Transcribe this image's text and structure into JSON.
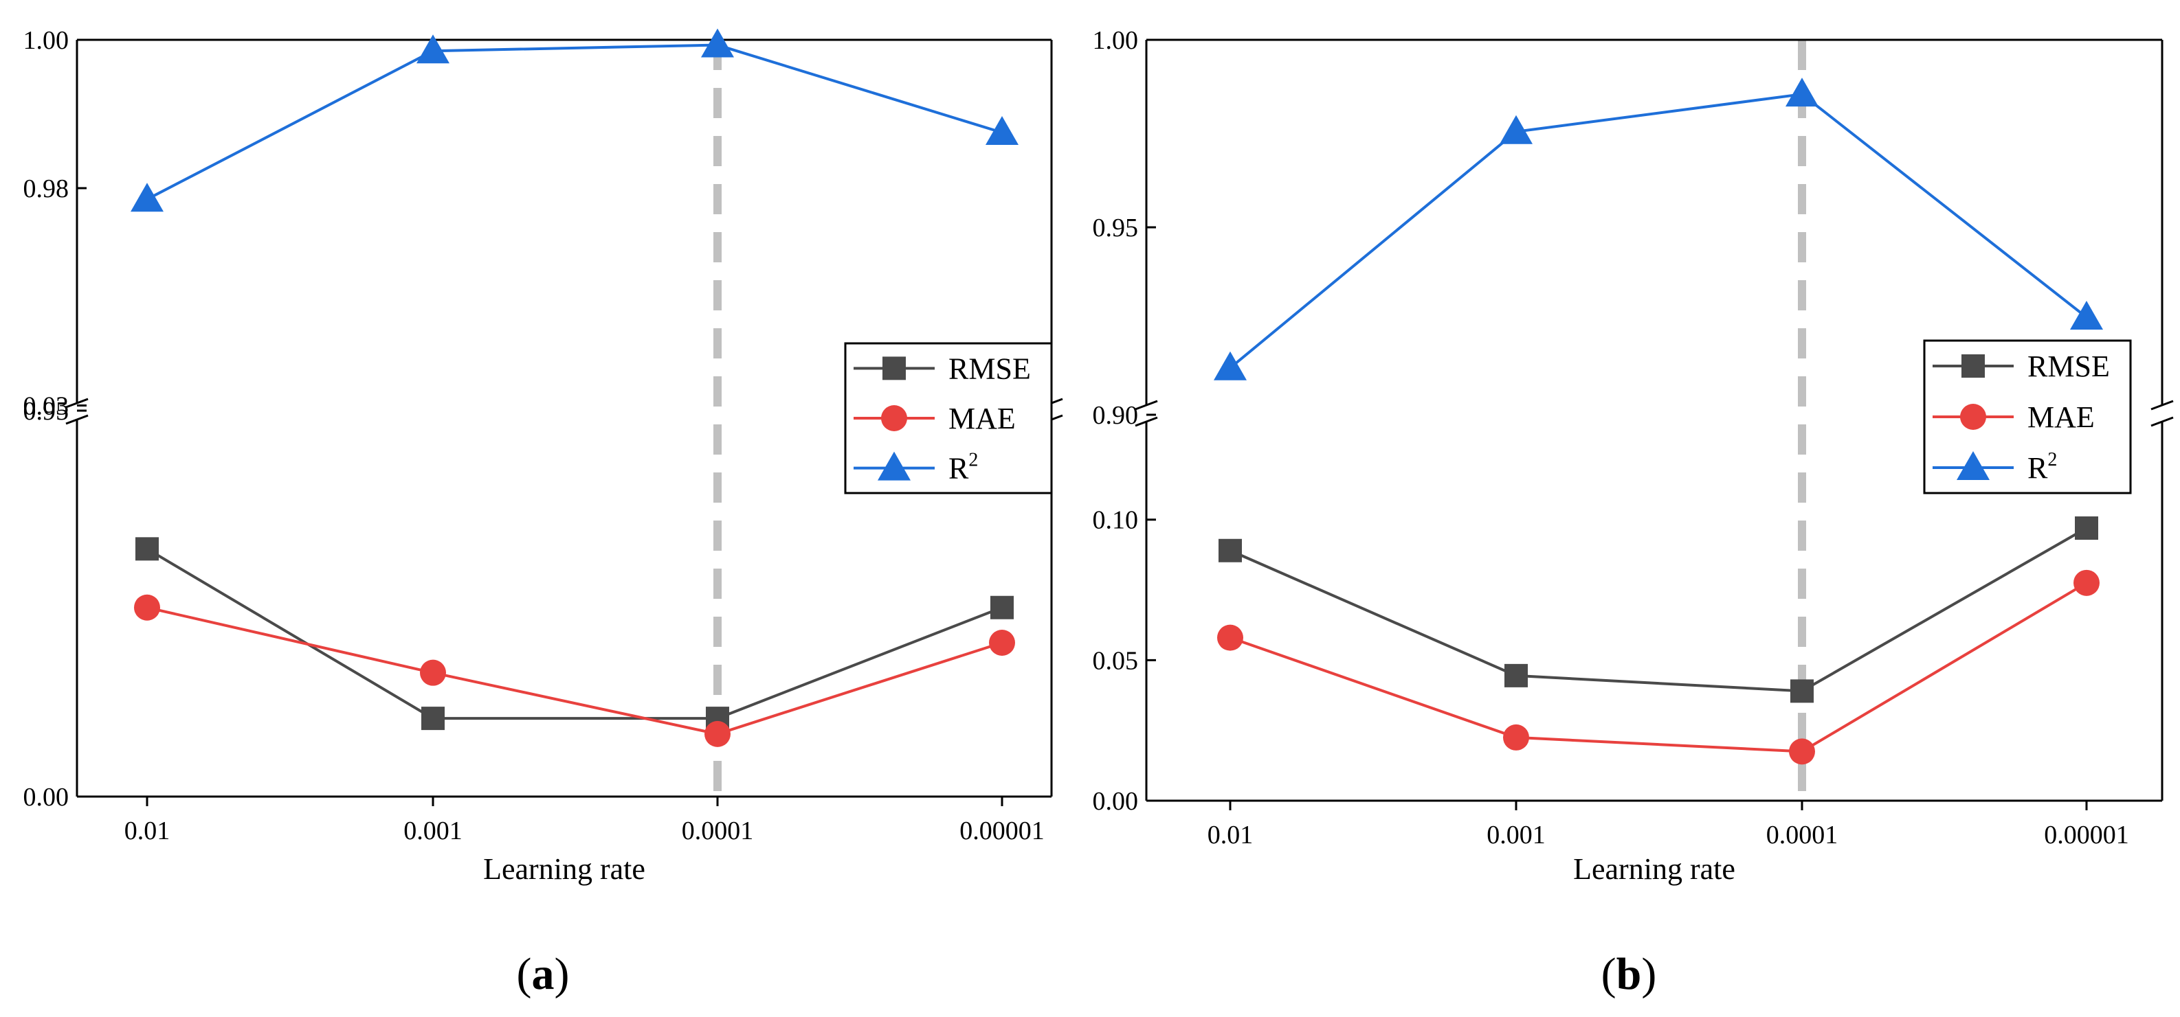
{
  "chart_data": [
    {
      "type": "line",
      "panel_label": "(a)",
      "xlabel": "Learning rate",
      "ylabel": "",
      "categories": [
        "0.01",
        "0.001",
        "0.0001",
        "0.00001"
      ],
      "axis_break": true,
      "y_segments": {
        "upper": {
          "ylim": [
            0.95,
            1.0
          ],
          "ticks": [
            "0.95",
            "0.98",
            "1.00"
          ],
          "tick_values": [
            0.95,
            0.98,
            1.0
          ]
        },
        "lower": {
          "ylim": [
            0.0,
            0.0295
          ],
          "ticks": [
            "0.00",
            "0.03"
          ],
          "tick_values": [
            0.0,
            0.03
          ]
        }
      },
      "highlight_category": "0.0001",
      "series": [
        {
          "name": "RMSE",
          "marker": "square",
          "color": "#4a4a4a",
          "values": [
            0.019,
            0.006,
            0.006,
            0.0145
          ]
        },
        {
          "name": "MAE",
          "marker": "circle",
          "color": "#e8413e",
          "values": [
            0.0145,
            0.0095,
            0.0048,
            0.0118
          ]
        },
        {
          "name": "R",
          "name_sup": "2",
          "marker": "triangle",
          "color": "#1e6fd9",
          "values": [
            0.9785,
            0.9985,
            0.9993,
            0.9875
          ]
        }
      ],
      "legend": {
        "position": "right"
      }
    },
    {
      "type": "line",
      "panel_label": "(b)",
      "xlabel": "Learning rate",
      "ylabel": "",
      "categories": [
        "0.01",
        "0.001",
        "0.0001",
        "0.00001"
      ],
      "axis_break": true,
      "y_segments": {
        "upper": {
          "ylim": [
            0.9,
            1.0
          ],
          "ticks": [
            "0.90",
            "0.95",
            "1.00"
          ],
          "tick_values": [
            0.9,
            0.95,
            1.0
          ]
        },
        "lower": {
          "ylim": [
            0.0,
            0.1383
          ],
          "ticks": [
            "0.00",
            "0.05",
            "0.10"
          ],
          "tick_values": [
            0.0,
            0.05,
            0.1
          ]
        }
      },
      "highlight_category": "0.0001",
      "series": [
        {
          "name": "RMSE",
          "marker": "square",
          "color": "#4a4a4a",
          "values": [
            0.089,
            0.0445,
            0.039,
            0.097
          ]
        },
        {
          "name": "MAE",
          "marker": "circle",
          "color": "#e8413e",
          "values": [
            0.058,
            0.0225,
            0.0175,
            0.0775
          ]
        },
        {
          "name": "R",
          "name_sup": "2",
          "marker": "triangle",
          "color": "#1e6fd9",
          "values": [
            0.9125,
            0.9755,
            0.9855,
            0.926
          ]
        }
      ],
      "legend": {
        "position": "right"
      }
    }
  ]
}
